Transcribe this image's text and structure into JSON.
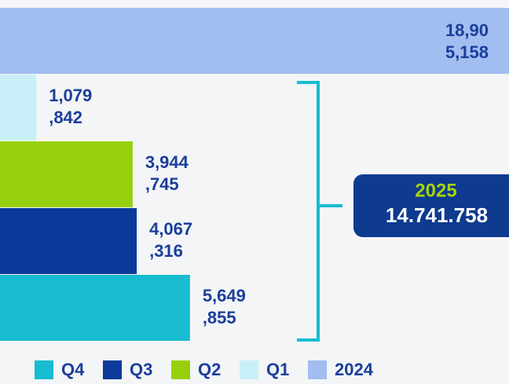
{
  "chart_data": {
    "type": "bar",
    "series": [
      {
        "name": "Q4",
        "color": "#17bcd0",
        "values": [
          5649855
        ],
        "value_labels": [
          [
            "5,649",
            ",855"
          ]
        ]
      },
      {
        "name": "Q3",
        "color": "#0b3a9b",
        "values": [
          4067316
        ],
        "value_labels": [
          [
            "4,067",
            ",316"
          ]
        ]
      },
      {
        "name": "Q2",
        "color": "#97cf0c",
        "values": [
          3944745
        ],
        "value_labels": [
          [
            "3,944",
            ",745"
          ]
        ]
      },
      {
        "name": "Q1",
        "color": "#c9f0f8",
        "values": [
          1079842
        ],
        "value_labels": [
          [
            "1,079",
            ",842"
          ]
        ]
      },
      {
        "name": "2024",
        "color": "#a2bdf0",
        "values": [
          18905158
        ],
        "value_labels": [
          [
            "18,90",
            "5,158"
          ]
        ]
      }
    ],
    "total_name": "2025",
    "total": 14741758,
    "total_label": "14.741.758"
  }
}
